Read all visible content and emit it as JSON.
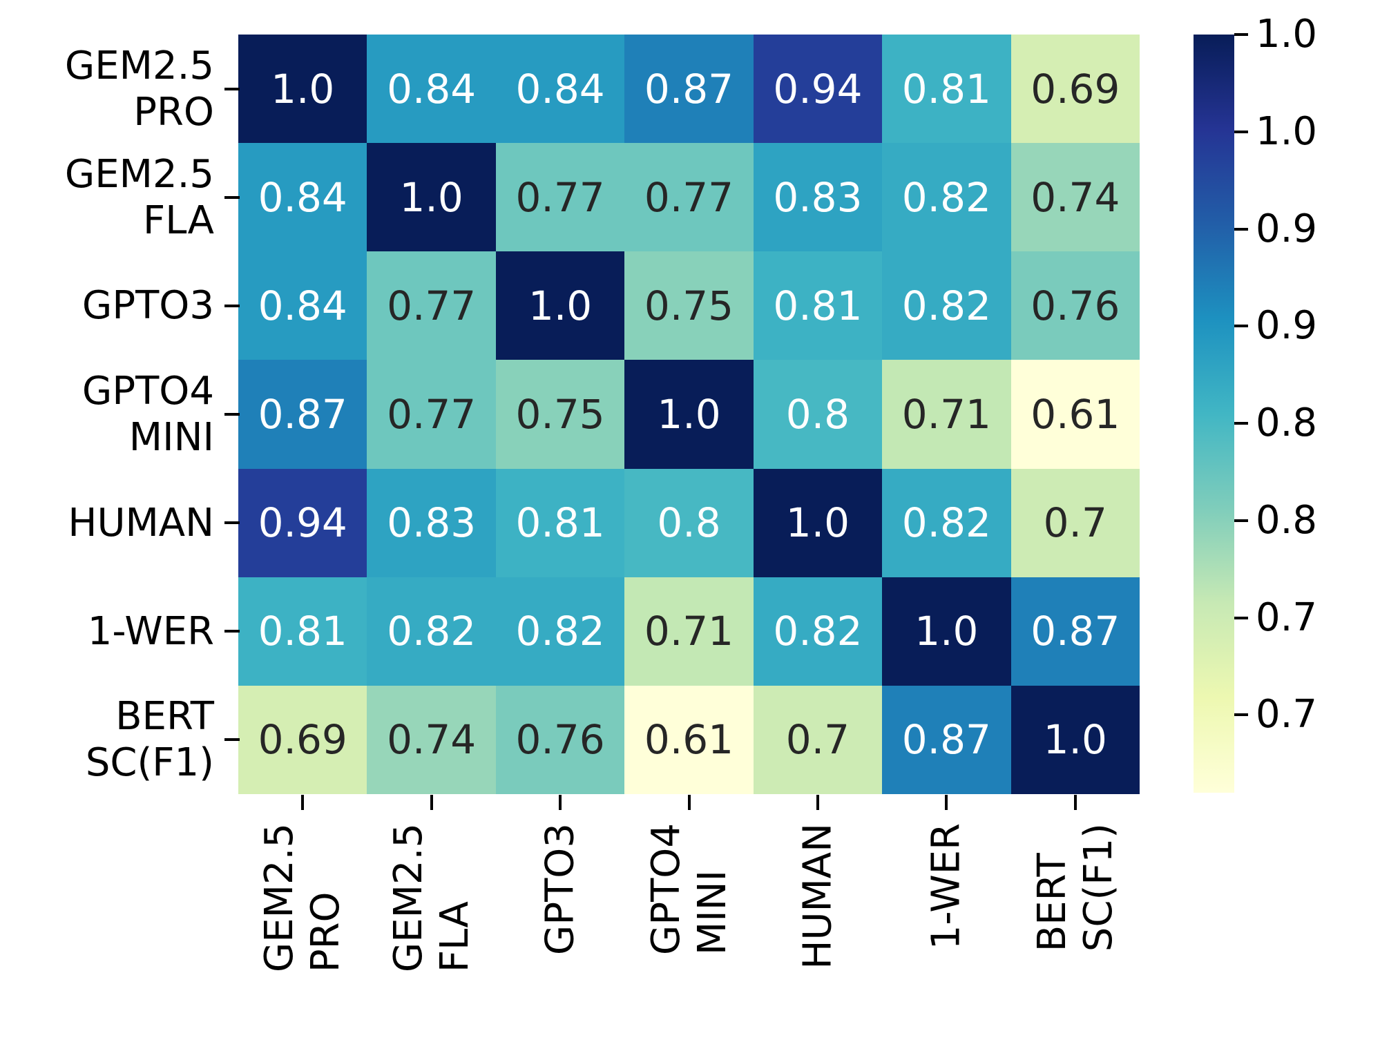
{
  "chart_data": {
    "type": "heatmap",
    "title": "",
    "xlabel": "",
    "ylabel": "",
    "categories": [
      "GEM2.5 PRO",
      "GEM2.5 FLA",
      "GPTO3",
      "GPTO4 MINI",
      "HUMAN",
      "1-WER",
      "BERT SC(F1)"
    ],
    "row_label_lines": [
      [
        "GEM2.5",
        "PRO"
      ],
      [
        "GEM2.5",
        "FLA"
      ],
      [
        "GPTO3"
      ],
      [
        "GPTO4",
        "MINI"
      ],
      [
        "HUMAN"
      ],
      [
        "1-WER"
      ],
      [
        "BERT",
        "SC(F1)"
      ]
    ],
    "col_label_lines": [
      [
        "GEM2.5",
        "PRO"
      ],
      [
        "GEM2.5",
        "FLA"
      ],
      [
        "GPTO3"
      ],
      [
        "GPTO4",
        "MINI"
      ],
      [
        "HUMAN"
      ],
      [
        "1-WER"
      ],
      [
        "BERT",
        "SC(F1)"
      ]
    ],
    "matrix": [
      [
        1.0,
        0.84,
        0.84,
        0.87,
        0.94,
        0.81,
        0.69
      ],
      [
        0.84,
        1.0,
        0.77,
        0.77,
        0.83,
        0.82,
        0.74
      ],
      [
        0.84,
        0.77,
        1.0,
        0.75,
        0.81,
        0.82,
        0.76
      ],
      [
        0.87,
        0.77,
        0.75,
        1.0,
        0.8,
        0.71,
        0.61
      ],
      [
        0.94,
        0.83,
        0.81,
        0.8,
        1.0,
        0.82,
        0.7
      ],
      [
        0.81,
        0.82,
        0.82,
        0.71,
        0.82,
        1.0,
        0.87
      ],
      [
        0.69,
        0.74,
        0.76,
        0.61,
        0.7,
        0.87,
        1.0
      ]
    ],
    "matrix_display": [
      [
        "1.0",
        "0.84",
        "0.84",
        "0.87",
        "0.94",
        "0.81",
        "0.69"
      ],
      [
        "0.84",
        "1.0",
        "0.77",
        "0.77",
        "0.83",
        "0.82",
        "0.74"
      ],
      [
        "0.84",
        "0.77",
        "1.0",
        "0.75",
        "0.81",
        "0.82",
        "0.76"
      ],
      [
        "0.87",
        "0.77",
        "0.75",
        "1.0",
        "0.8",
        "0.71",
        "0.61"
      ],
      [
        "0.94",
        "0.83",
        "0.81",
        "0.8",
        "1.0",
        "0.82",
        "0.7"
      ],
      [
        "0.81",
        "0.82",
        "0.82",
        "0.71",
        "0.82",
        "1.0",
        "0.87"
      ],
      [
        "0.69",
        "0.74",
        "0.76",
        "0.61",
        "0.7",
        "0.87",
        "1.0"
      ]
    ],
    "colormap": "YlGnBu",
    "vmin": 0.61,
    "vmax": 1.0,
    "grid": "off",
    "legend_position": "right-colorbar",
    "colormap_stops": [
      "#ffffd9",
      "#edf8b1",
      "#c7e9b4",
      "#7fcdbb",
      "#41b6c4",
      "#1d91c0",
      "#225ea8",
      "#253494",
      "#081d58"
    ],
    "value_colors": {
      "1.0": {
        "bg": "#081d58",
        "fg": "#ffffff"
      },
      "0.94": {
        "bg": "#243e99",
        "fg": "#ffffff"
      },
      "0.87": {
        "bg": "#1f80b8",
        "fg": "#ffffff"
      },
      "0.84": {
        "bg": "#279bc1",
        "fg": "#ffffff"
      },
      "0.83": {
        "bg": "#2ea3c2",
        "fg": "#ffffff"
      },
      "0.82": {
        "bg": "#36abc3",
        "fg": "#ffffff"
      },
      "0.81": {
        "bg": "#3db2c4",
        "fg": "#ffffff"
      },
      "0.8": {
        "bg": "#47b8c3",
        "fg": "#ffffff"
      },
      "0.77": {
        "bg": "#6ec7be",
        "fg": "#262626"
      },
      "0.76": {
        "bg": "#7acbbc",
        "fg": "#262626"
      },
      "0.75": {
        "bg": "#88d1ba",
        "fg": "#262626"
      },
      "0.74": {
        "bg": "#97d6b9",
        "fg": "#262626"
      },
      "0.71": {
        "bg": "#c3e8b4",
        "fg": "#262626"
      },
      "0.7": {
        "bg": "#cdebb4",
        "fg": "#262626"
      },
      "0.69": {
        "bg": "#d5eeb3",
        "fg": "#262626"
      },
      "0.61": {
        "bg": "#ffffd9",
        "fg": "#262626"
      }
    },
    "colorbar": {
      "tick_values": [
        1.0,
        0.95,
        0.9,
        0.85,
        0.8,
        0.75,
        0.7,
        0.65
      ],
      "tick_labels": [
        "1.0",
        "1.0",
        "0.9",
        "0.9",
        "0.8",
        "0.8",
        "0.7",
        "0.7"
      ]
    },
    "axis_text_color": "#000000",
    "annotation_light": "#ffffff",
    "annotation_dark": "#262626"
  }
}
